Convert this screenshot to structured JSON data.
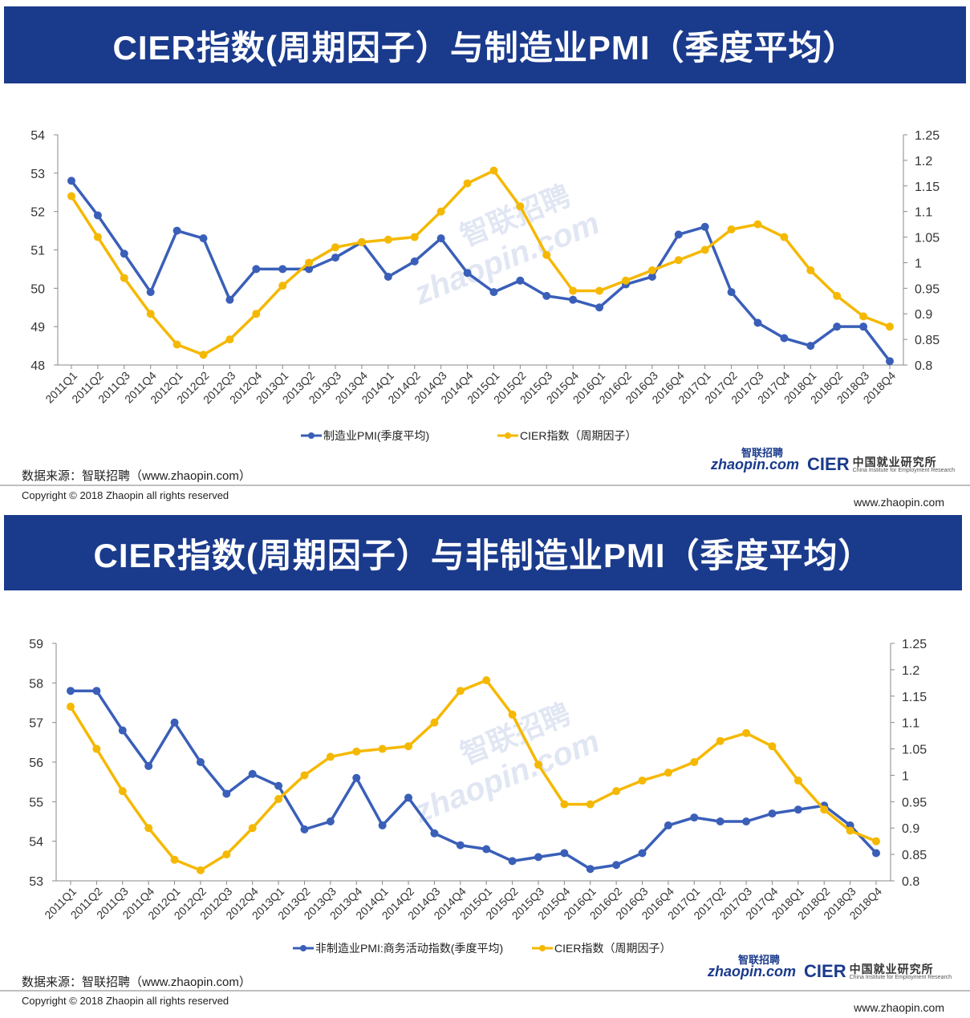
{
  "chart_data": [
    {
      "type": "line",
      "title": "CIER指数(周期因子）与制造业PMI（季度平均）",
      "categories": [
        "2011Q1",
        "2011Q2",
        "2011Q3",
        "2011Q4",
        "2012Q1",
        "2012Q2",
        "2012Q3",
        "2012Q4",
        "2013Q1",
        "2013Q2",
        "2013Q3",
        "2013Q4",
        "2014Q1",
        "2014Q2",
        "2014Q3",
        "2014Q4",
        "2015Q1",
        "2015Q2",
        "2015Q3",
        "2015Q4",
        "2016Q1",
        "2016Q2",
        "2016Q3",
        "2016Q4",
        "2017Q1",
        "2017Q2",
        "2017Q3",
        "2017Q4",
        "2018Q1",
        "2018Q2",
        "2018Q3",
        "2018Q4"
      ],
      "y_left_ticks": [
        "48",
        "49",
        "50",
        "51",
        "52",
        "53",
        "54"
      ],
      "y_right_ticks": [
        "0.8",
        "0.85",
        "0.9",
        "0.95",
        "1",
        "1.05",
        "1.1",
        "1.15",
        "1.2",
        "1.25"
      ],
      "y_left_range": [
        48,
        54
      ],
      "y_right_range": [
        0.8,
        1.25
      ],
      "series": [
        {
          "name": "制造业PMI(季度平均)",
          "axis": "left",
          "color": "#3a5fb8",
          "values": [
            52.8,
            51.9,
            50.9,
            49.9,
            51.5,
            51.3,
            49.7,
            50.5,
            50.5,
            50.5,
            50.8,
            51.2,
            50.3,
            50.7,
            51.3,
            50.4,
            49.9,
            50.2,
            49.8,
            49.7,
            49.5,
            50.1,
            50.3,
            51.4,
            51.6,
            49.9,
            49.1,
            48.7,
            48.5,
            49.0,
            49.0,
            48.1
          ]
        },
        {
          "name": "CIER指数（周期因子）",
          "axis": "right",
          "color": "#f5b800",
          "values": [
            1.13,
            1.05,
            0.97,
            0.9,
            0.84,
            0.82,
            0.85,
            0.9,
            0.955,
            1.0,
            1.03,
            1.04,
            1.045,
            1.05,
            1.1,
            1.155,
            1.18,
            1.11,
            1.015,
            0.945,
            0.945,
            0.965,
            0.985,
            1.005,
            1.025,
            1.065,
            1.075,
            1.05,
            0.985,
            0.935,
            0.895,
            0.875
          ]
        }
      ]
    },
    {
      "type": "line",
      "title": "CIER指数(周期因子）与非制造业PMI（季度平均）",
      "categories": [
        "2011Q1",
        "2011Q2",
        "2011Q3",
        "2011Q4",
        "2012Q1",
        "2012Q2",
        "2012Q3",
        "2012Q4",
        "2013Q1",
        "2013Q2",
        "2013Q3",
        "2013Q4",
        "2014Q1",
        "2014Q2",
        "2014Q3",
        "2014Q4",
        "2015Q1",
        "2015Q2",
        "2015Q3",
        "2015Q4",
        "2016Q1",
        "2016Q2",
        "2016Q3",
        "2016Q4",
        "2017Q1",
        "2017Q2",
        "2017Q3",
        "2017Q4",
        "2018Q1",
        "2018Q2",
        "2018Q3",
        "2018Q4"
      ],
      "y_left_ticks": [
        "53",
        "54",
        "55",
        "56",
        "57",
        "58",
        "59"
      ],
      "y_right_ticks": [
        "0.8",
        "0.85",
        "0.9",
        "0.95",
        "1",
        "1.05",
        "1.1",
        "1.15",
        "1.2",
        "1.25"
      ],
      "y_left_range": [
        53,
        59
      ],
      "y_right_range": [
        0.8,
        1.25
      ],
      "series": [
        {
          "name": "非制造业PMI:商务活动指数(季度平均)",
          "axis": "left",
          "color": "#3a5fb8",
          "values": [
            57.8,
            57.8,
            56.8,
            55.9,
            57.0,
            56.0,
            55.2,
            55.7,
            55.4,
            54.3,
            54.5,
            55.6,
            54.4,
            55.1,
            54.2,
            53.9,
            53.8,
            53.5,
            53.6,
            53.7,
            53.3,
            53.4,
            53.7,
            54.4,
            54.6,
            54.5,
            54.5,
            54.7,
            54.8,
            54.9,
            54.4,
            53.7
          ]
        },
        {
          "name": "CIER指数（周期因子）",
          "axis": "right",
          "color": "#f5b800",
          "values": [
            1.13,
            1.05,
            0.97,
            0.9,
            0.84,
            0.82,
            0.85,
            0.9,
            0.955,
            1.0,
            1.035,
            1.045,
            1.05,
            1.055,
            1.1,
            1.16,
            1.18,
            1.115,
            1.02,
            0.945,
            0.945,
            0.97,
            0.99,
            1.005,
            1.025,
            1.065,
            1.08,
            1.055,
            0.99,
            0.935,
            0.895,
            0.875
          ]
        }
      ]
    }
  ],
  "panels": [
    {
      "title": "CIER指数(周期因子）与制造业PMI（季度平均）",
      "source": "数据来源：智联招聘（www.zhaopin.com）",
      "copyright": "Copyright © 2018 Zhaopin all rights reserved",
      "url": "www.zhaopin.com"
    },
    {
      "title": "CIER指数(周期因子）与非制造业PMI（季度平均）",
      "source": "数据来源：智联招聘（www.zhaopin.com）",
      "copyright": "Copyright © 2018 Zhaopin all rights reserved",
      "url": "www.zhaopin.com"
    }
  ],
  "logo": {
    "zhaopin_en": "zhaopin.com",
    "zhaopin_cn": "智联招聘",
    "cier": "CIER",
    "cier_cn": "中国就业研究所",
    "cier_en": "China Institute for Employment Research"
  },
  "watermark": {
    "cn": "智联招聘",
    "en": "zhaopin.com"
  }
}
